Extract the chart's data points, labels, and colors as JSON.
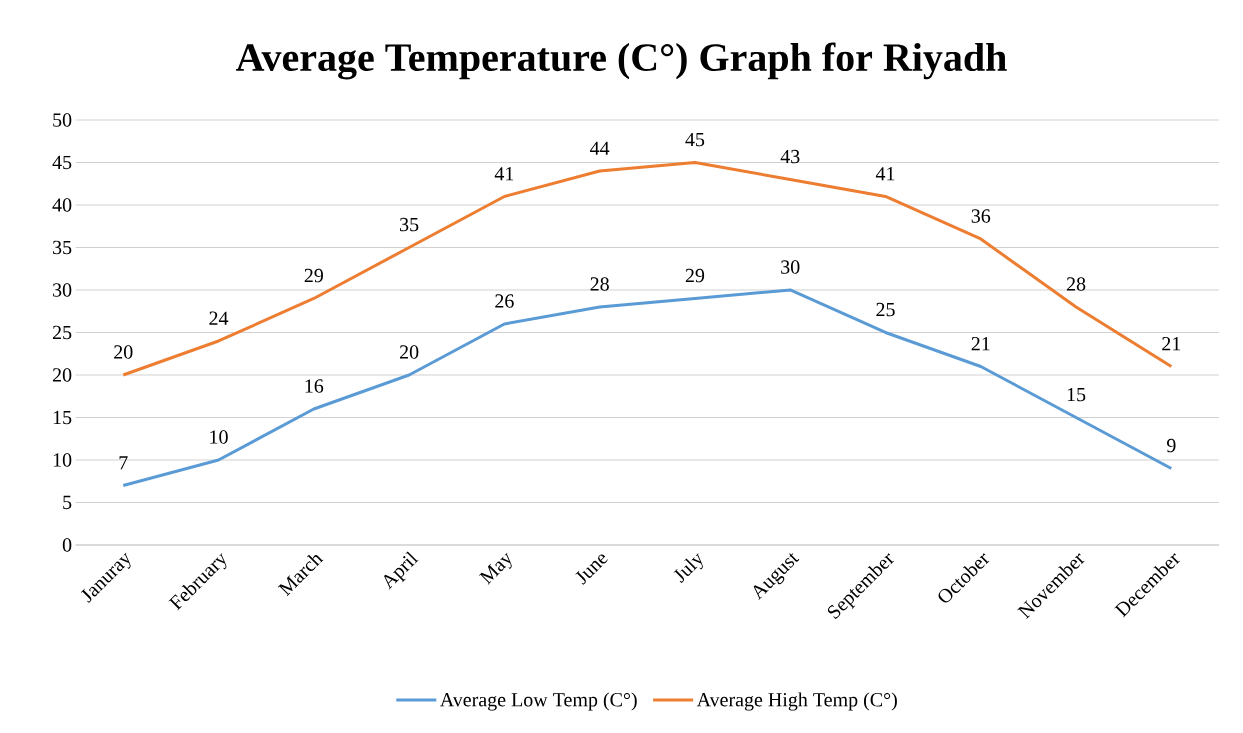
{
  "chart_data": {
    "type": "line",
    "title": "Average Temperature (C°) Graph for Riyadh",
    "categories": [
      "Januray",
      "February",
      "March",
      "April",
      "May",
      "June",
      "July",
      "August",
      "September",
      "October",
      "November",
      "December"
    ],
    "series": [
      {
        "name": "Average Low Temp (C°)",
        "color": "#5b9bd5",
        "values": [
          7,
          10,
          16,
          20,
          26,
          28,
          29,
          30,
          25,
          21,
          15,
          9
        ]
      },
      {
        "name": "Average High Temp (C°)",
        "color": "#ed7d31",
        "values": [
          20,
          24,
          29,
          35,
          41,
          44,
          45,
          43,
          41,
          36,
          28,
          21
        ]
      }
    ],
    "ylim": [
      0,
      50
    ],
    "yticks": [
      0,
      5,
      10,
      15,
      20,
      25,
      30,
      35,
      40,
      45,
      50
    ],
    "grid": "y",
    "legend": "bottom",
    "data_labels": true,
    "marker": "none",
    "line_style": "solid"
  }
}
